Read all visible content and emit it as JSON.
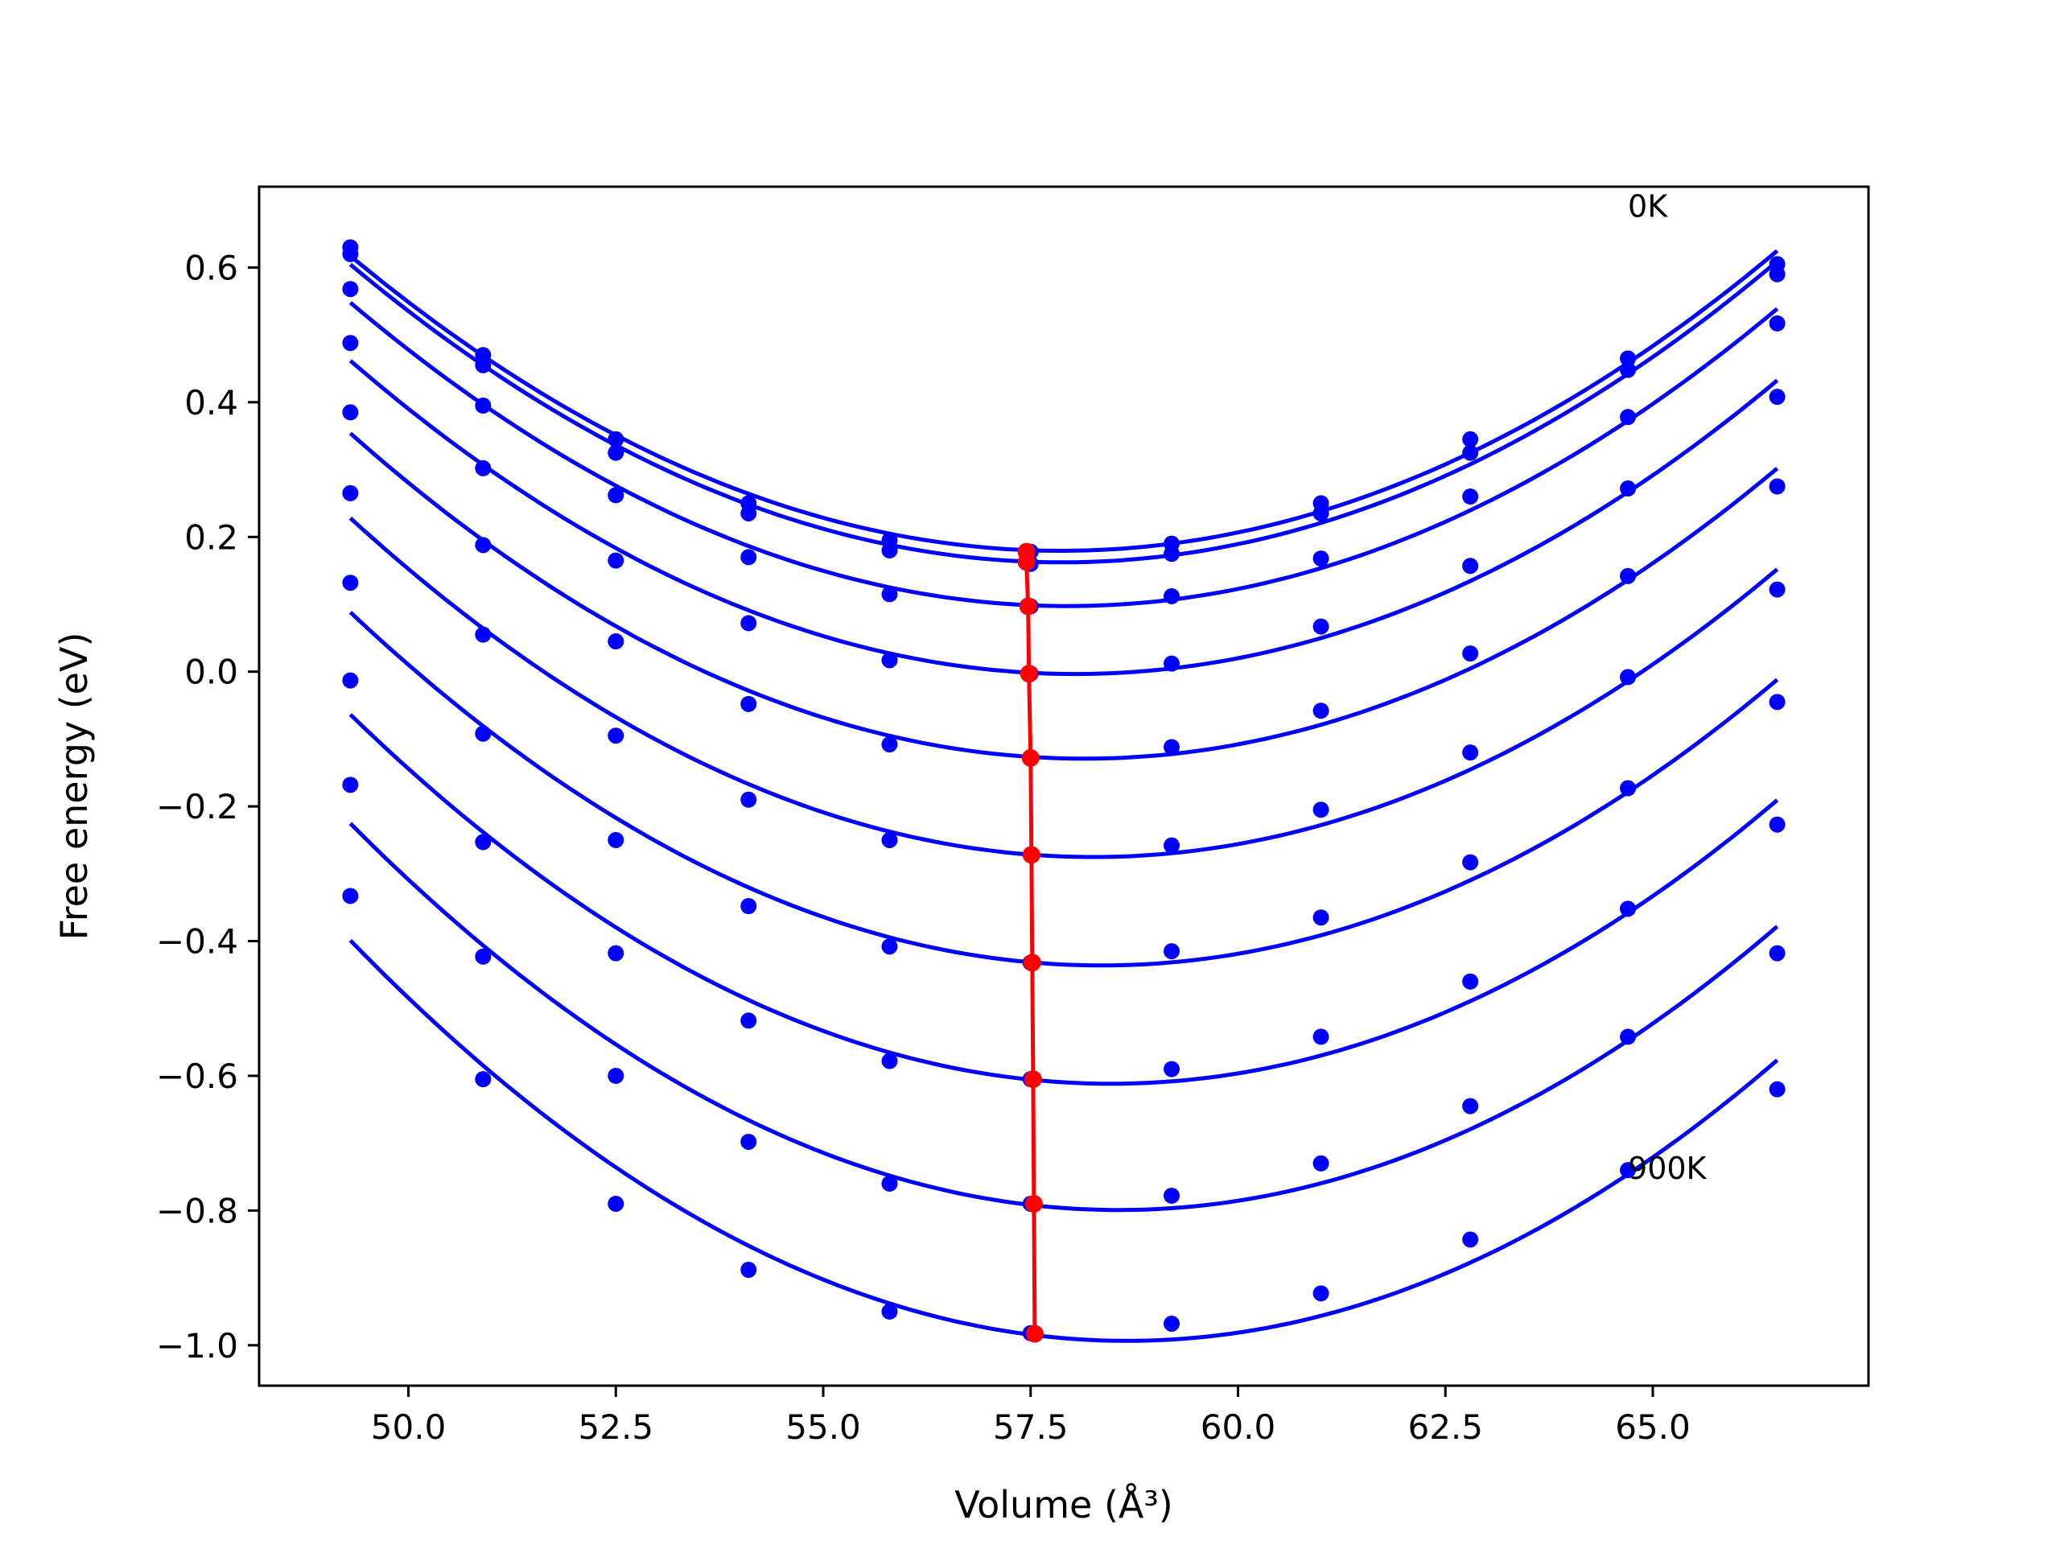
{
  "chart_data": {
    "type": "line",
    "title": "",
    "xlabel": "Volume (Å³)",
    "ylabel": "Free energy (eV)",
    "xlim": [
      48.2,
      67.6
    ],
    "ylim": [
      -1.06,
      0.72
    ],
    "xticks": [
      50.0,
      52.5,
      55.0,
      57.5,
      60.0,
      62.5,
      65.0
    ],
    "xtick_labels": [
      "50.0",
      "52.5",
      "55.0",
      "57.5",
      "60.0",
      "62.5",
      "65.0"
    ],
    "yticks": [
      0.6,
      0.4,
      0.2,
      0.0,
      -0.2,
      -0.4,
      -0.6,
      -0.8,
      -1.0
    ],
    "ytick_labels": [
      "0.6",
      "0.4",
      "0.2",
      "0.0",
      "−0.2",
      "−0.4",
      "−0.6",
      "−0.8",
      "−1.0"
    ],
    "grid": false,
    "colors": {
      "data": "#0000ff",
      "minima": "#ff0000",
      "axes": "#000000"
    },
    "volumes": [
      49.3,
      50.9,
      52.5,
      54.1,
      55.8,
      57.5,
      59.2,
      61.0,
      62.8,
      64.7,
      66.5
    ],
    "series": [
      {
        "values": [
          0.63,
          0.47,
          0.345,
          0.25,
          0.195,
          0.178,
          0.19,
          0.25,
          0.345,
          0.465,
          0.605
        ]
      },
      {
        "values": [
          0.62,
          0.455,
          0.325,
          0.235,
          0.18,
          0.16,
          0.175,
          0.235,
          0.325,
          0.448,
          0.59
        ]
      },
      {
        "values": [
          0.568,
          0.395,
          0.262,
          0.17,
          0.115,
          0.097,
          0.112,
          0.168,
          0.26,
          0.378,
          0.517
        ]
      },
      {
        "values": [
          0.488,
          0.302,
          0.165,
          0.072,
          0.017,
          -0.003,
          0.012,
          0.067,
          0.157,
          0.272,
          0.408
        ]
      },
      {
        "values": [
          0.385,
          0.188,
          0.045,
          -0.048,
          -0.108,
          -0.128,
          -0.112,
          -0.058,
          0.027,
          0.142,
          0.275
        ]
      },
      {
        "values": [
          0.265,
          0.055,
          -0.095,
          -0.19,
          -0.25,
          -0.272,
          -0.258,
          -0.205,
          -0.12,
          -0.008,
          0.122
        ]
      },
      {
        "values": [
          0.132,
          -0.092,
          -0.25,
          -0.348,
          -0.408,
          -0.432,
          -0.415,
          -0.365,
          -0.283,
          -0.173,
          -0.045
        ]
      },
      {
        "values": [
          -0.013,
          -0.253,
          -0.418,
          -0.518,
          -0.578,
          -0.605,
          -0.59,
          -0.542,
          -0.46,
          -0.352,
          -0.227
        ]
      },
      {
        "values": [
          -0.168,
          -0.423,
          -0.6,
          -0.698,
          -0.76,
          -0.79,
          -0.778,
          -0.73,
          -0.645,
          -0.542,
          -0.418
        ]
      },
      {
        "values": [
          -0.333,
          -0.605,
          -0.79,
          -0.888,
          -0.95,
          -0.982,
          -0.968,
          -0.923,
          -0.843,
          -0.74,
          -0.62
        ]
      }
    ],
    "minima": {
      "x": [
        57.45,
        57.45,
        57.47,
        57.48,
        57.5,
        57.51,
        57.52,
        57.53,
        57.54,
        57.55
      ],
      "y": [
        0.178,
        0.163,
        0.097,
        -0.003,
        -0.128,
        -0.272,
        -0.432,
        -0.605,
        -0.79,
        -0.983
      ]
    },
    "annotations": [
      {
        "text": "0K",
        "x": 64.7,
        "y": 0.675
      },
      {
        "text": "900K",
        "x": 64.7,
        "y": -0.753
      }
    ]
  }
}
